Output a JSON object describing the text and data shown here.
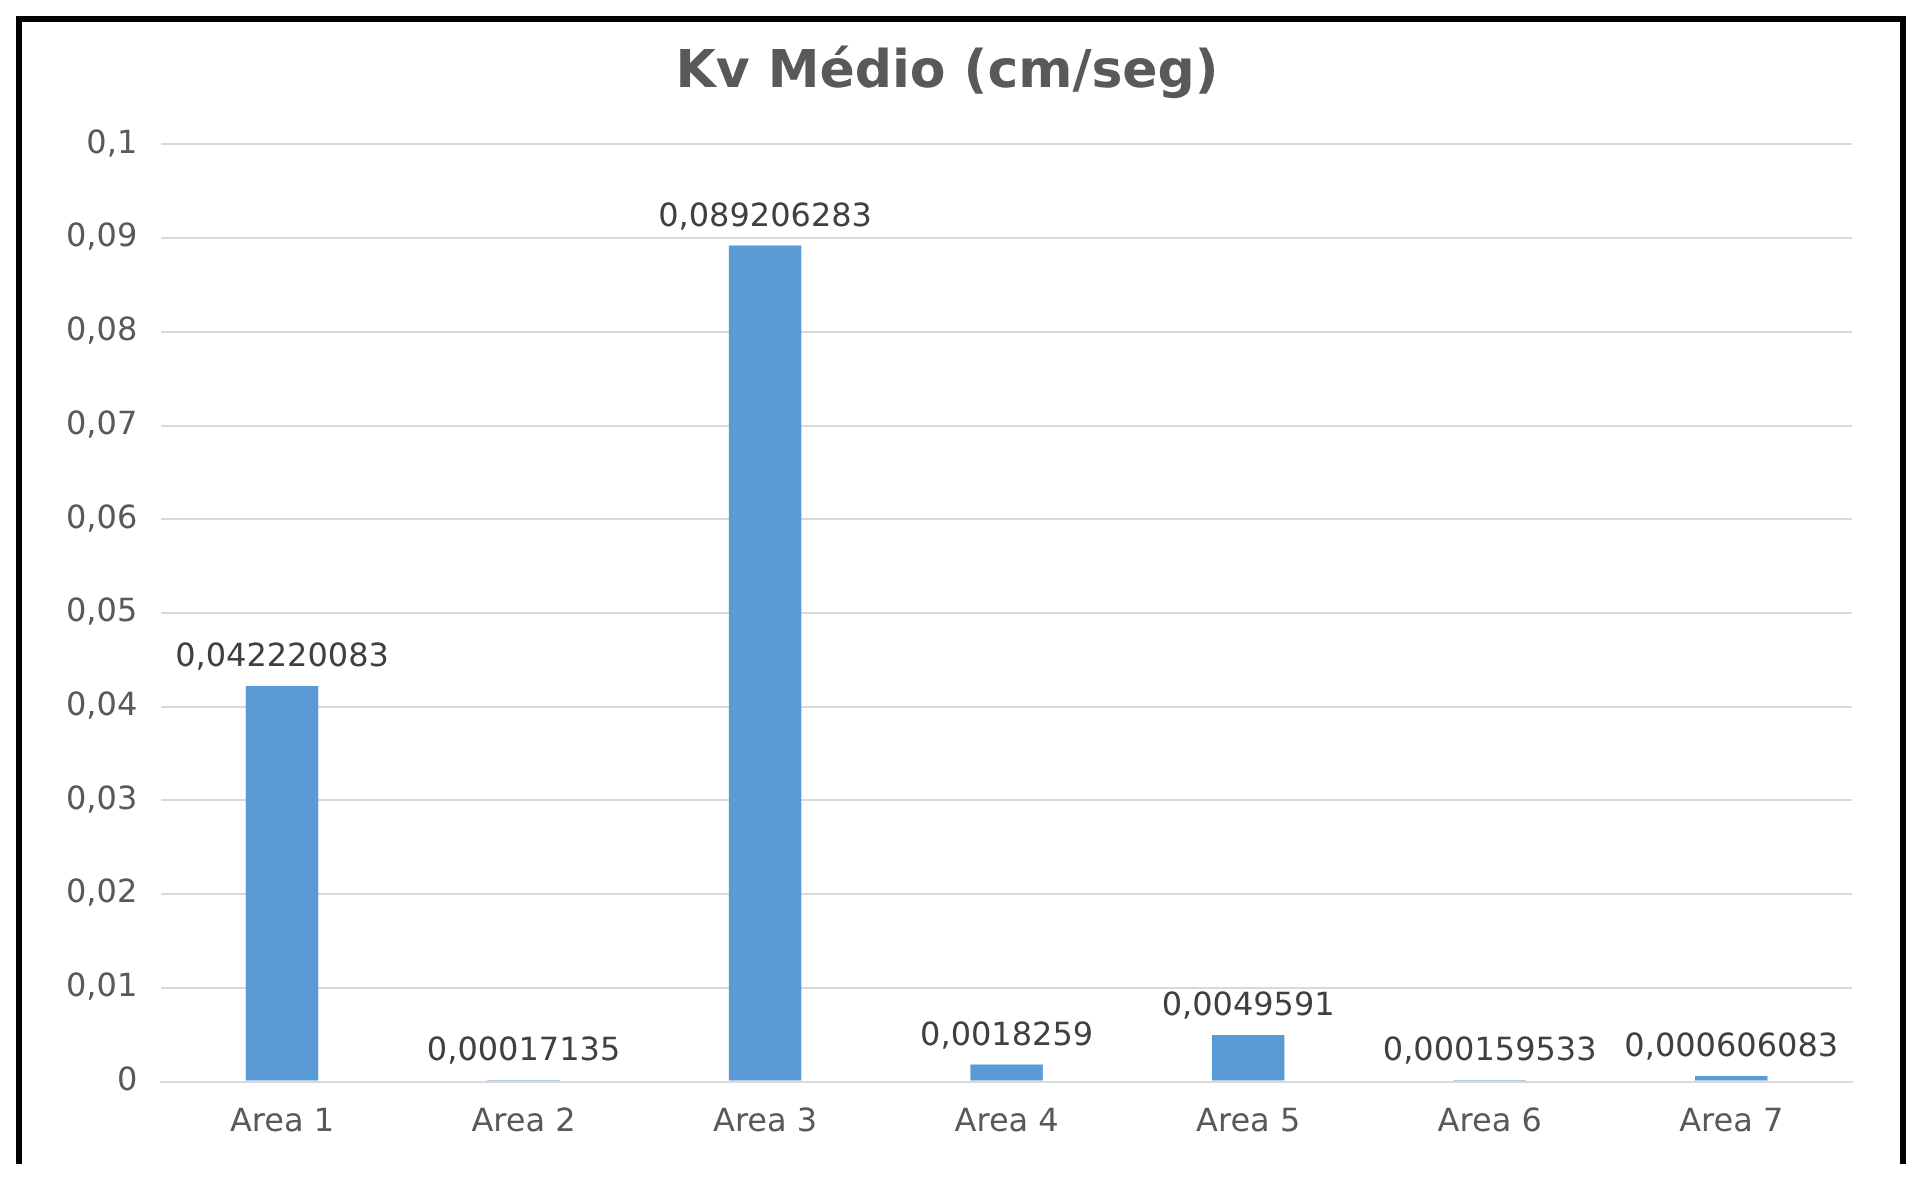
{
  "chart_data": {
    "type": "bar",
    "title": "Kv Médio (cm/seg)",
    "categories": [
      "Area 1",
      "Area 2",
      "Area 3",
      "Area 4",
      "Area 5",
      "Area 6",
      "Area 7"
    ],
    "values": [
      0.042220083,
      0.00017135,
      0.089206283,
      0.0018259,
      0.0049591,
      0.000159533,
      0.000606083
    ],
    "value_labels": [
      "0,042220083",
      "0,00017135",
      "0,089206283",
      "0,0018259",
      "0,0049591",
      "0,000159533",
      "0,000606083"
    ],
    "color": "#5b9bd5",
    "ylim": [
      0,
      0.1
    ],
    "yticks": [
      {
        "value": 0,
        "label": "0"
      },
      {
        "value": 0.01,
        "label": "0,01"
      },
      {
        "value": 0.02,
        "label": "0,02"
      },
      {
        "value": 0.03,
        "label": "0,03"
      },
      {
        "value": 0.04,
        "label": "0,04"
      },
      {
        "value": 0.05,
        "label": "0,05"
      },
      {
        "value": 0.06,
        "label": "0,06"
      },
      {
        "value": 0.07,
        "label": "0,07"
      },
      {
        "value": 0.08,
        "label": "0,08"
      },
      {
        "value": 0.09,
        "label": "0,09"
      },
      {
        "value": 0.1,
        "label": "0,1"
      }
    ],
    "grid": "y",
    "legend": false
  }
}
